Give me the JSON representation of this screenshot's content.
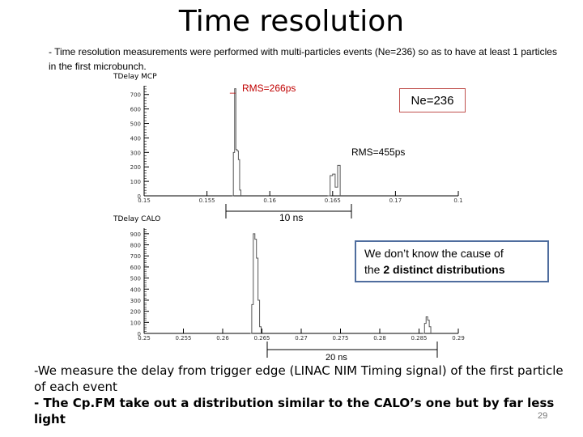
{
  "slide": {
    "title": "Time resolution",
    "intro": "- Time resolution measurements were performed with multi-particles events (Ne=236) so as to have at least 1 particles in the first microbunch.",
    "page_number": "29"
  },
  "plot_mcp": {
    "title": "TDelay MCP",
    "rms_label": "RMS=266ps",
    "rms_marker": "_",
    "ne_label": "Ne=236",
    "rms2_label": "RMS=455ps",
    "span_label": "10 ns",
    "y_ticks": [
      "700",
      "600",
      "500",
      "400",
      "300",
      "200",
      "100",
      "0"
    ],
    "x_ticks": [
      "0.15",
      "0.155",
      "0.16",
      "0.165",
      "0.17",
      "0.1"
    ],
    "chart_data": {
      "type": "line",
      "title": "TDelay MCP",
      "xlim": [
        0.15,
        0.175
      ],
      "ylim": [
        0,
        760
      ],
      "series": [
        {
          "x": [
            0.157,
            0.1571,
            0.1572,
            0.1573,
            0.1574,
            0.1575,
            0.1576,
            0.1577
          ],
          "y": [
            0,
            300,
            740,
            320,
            310,
            250,
            40,
            0
          ]
        },
        {
          "x": [
            0.1646,
            0.1648,
            0.165,
            0.1652,
            0.1654,
            0.1656
          ],
          "y": [
            0,
            140,
            150,
            60,
            210,
            0
          ]
        }
      ]
    }
  },
  "plot_calo": {
    "title": "TDelay CALO",
    "y_ticks": [
      "900",
      "800",
      "700",
      "600",
      "500",
      "400",
      "300",
      "200",
      "100",
      "0"
    ],
    "x_ticks": [
      "0.25",
      "0.255",
      "0.26",
      "0.265",
      "0.27",
      "0.275",
      "0.28",
      "0.285",
      "0.29"
    ],
    "span_label": "20 ns",
    "chart_data": {
      "type": "line",
      "title": "TDelay CALO",
      "xlim": [
        0.25,
        0.29
      ],
      "ylim": [
        0,
        950
      ],
      "series": [
        {
          "x": [
            0.2635,
            0.2637,
            0.2639,
            0.2641,
            0.2643,
            0.2645,
            0.2647,
            0.2649
          ],
          "y": [
            0,
            260,
            900,
            850,
            680,
            300,
            60,
            0
          ]
        },
        {
          "x": [
            0.2855,
            0.2857,
            0.2859,
            0.2861,
            0.2863,
            0.2865
          ],
          "y": [
            0,
            90,
            150,
            120,
            60,
            0
          ]
        }
      ]
    }
  },
  "note": {
    "text_line1": "We don’t know the cause of",
    "text_line2_prefix": "the ",
    "text_line2_bold": "2 distinct distributions"
  },
  "bottom_text": {
    "line1": "-We measure the delay from trigger edge (LINAC NIM Timing signal) of the first particle of each event",
    "line2": "- The Cp.FM take out a distribution similar to the CALO’s one but by far less light"
  },
  "colors": {
    "rms_red": "#c00000",
    "ne_box_border": "#c0504d",
    "note_border": "#4f6d9e",
    "histogram": "#555555"
  }
}
